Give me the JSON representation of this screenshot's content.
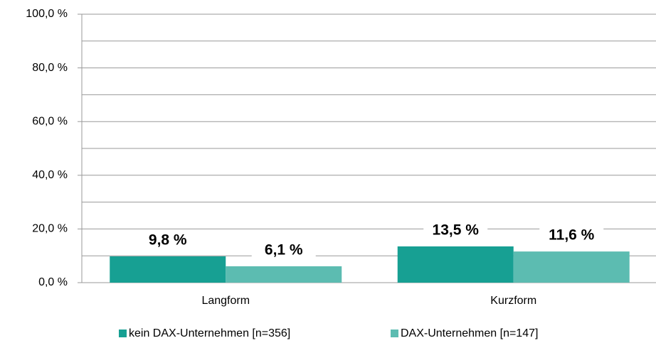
{
  "chart_data": {
    "type": "bar",
    "categories": [
      "Langform",
      "Kurzform"
    ],
    "series": [
      {
        "name": "kein DAX-Unternehmen [n=356]",
        "color": "#17a093",
        "values": [
          9.8,
          13.5
        ],
        "value_labels": [
          "9,8 %",
          "13,5 %"
        ]
      },
      {
        "name": "DAX-Unternehmen [n=147]",
        "color": "#5cbcb1",
        "values": [
          6.1,
          11.6
        ],
        "value_labels": [
          "6,1 %",
          "11,6 %"
        ]
      }
    ],
    "ylim": [
      0,
      100
    ],
    "yticks": [
      {
        "value": 0,
        "label": "0,0 %"
      },
      {
        "value": 20,
        "label": "20,0 %"
      },
      {
        "value": 40,
        "label": "40,0 %"
      },
      {
        "value": 60,
        "label": "60,0 %"
      },
      {
        "value": 80,
        "label": "80,0 %"
      },
      {
        "value": 100,
        "label": "100,0 %"
      }
    ],
    "yticks_minor": [
      10,
      30,
      50,
      70,
      90
    ],
    "grid": true,
    "legend": "bottom"
  }
}
